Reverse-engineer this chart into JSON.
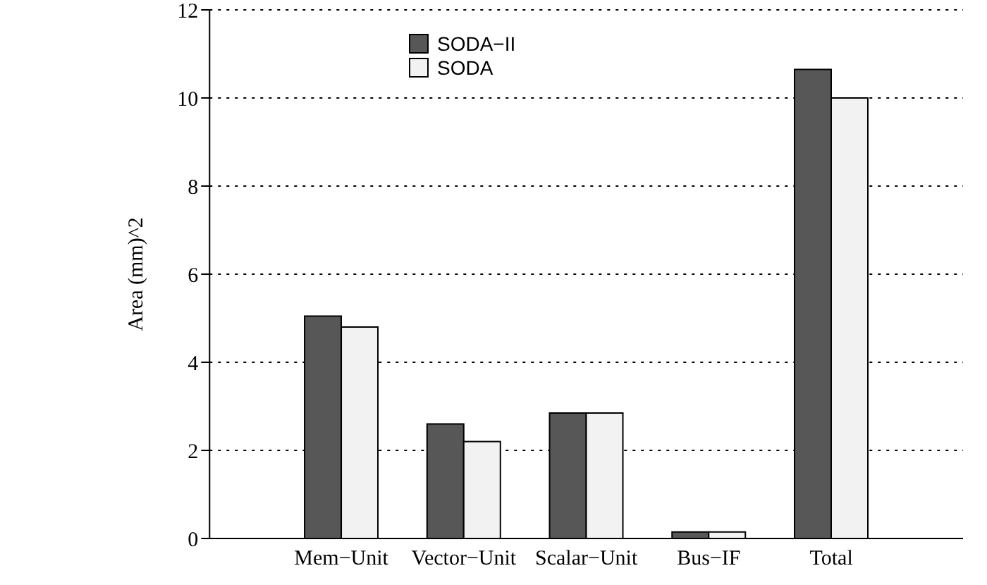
{
  "chart_data": {
    "type": "bar",
    "ylabel": "Area (mm)^2",
    "categories": [
      "Mem−Unit",
      "Vector−Unit",
      "Scalar−Unit",
      "Bus−IF",
      "Total"
    ],
    "series": [
      {
        "name": "SODA−II",
        "color": "#575757",
        "values": [
          5.05,
          2.6,
          2.85,
          0.15,
          10.65
        ]
      },
      {
        "name": "SODA",
        "color": "#f2f2f2",
        "values": [
          4.8,
          2.2,
          2.85,
          0.15,
          10.0
        ]
      }
    ],
    "ylim": [
      0,
      12
    ],
    "yticks": [
      0,
      2,
      4,
      6,
      8,
      10,
      12
    ],
    "grid": "y",
    "legend": "top"
  }
}
